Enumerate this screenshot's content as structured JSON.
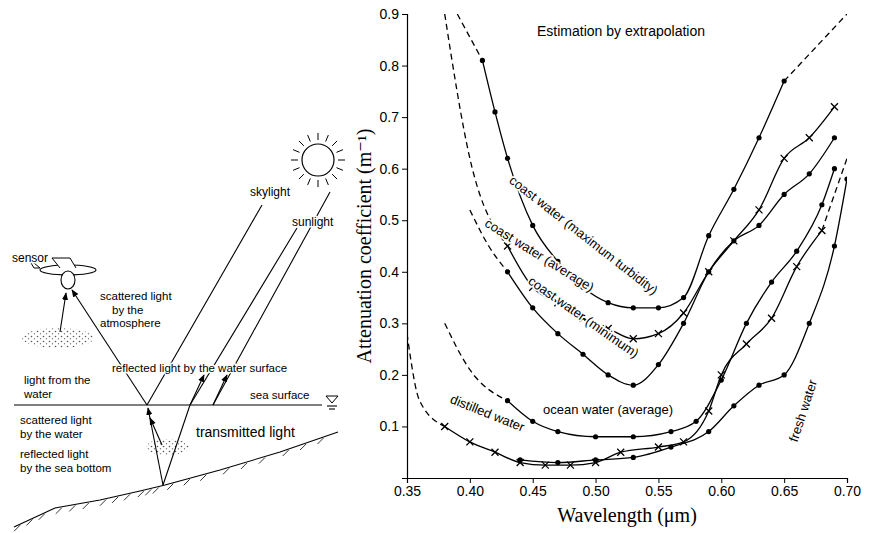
{
  "diagram": {
    "labels": [
      {
        "lines": [
          "sensor"
        ]
      },
      {
        "lines": [
          "skylight"
        ]
      },
      {
        "lines": [
          "sunlight"
        ]
      },
      {
        "lines": [
          "scattered light",
          "by the",
          "atmosphere"
        ]
      },
      {
        "lines": [
          "reflected light by the water surface"
        ]
      },
      {
        "lines": [
          "light from the",
          "water"
        ]
      },
      {
        "lines": [
          "sea surface"
        ]
      },
      {
        "lines": [
          "scattered light",
          "by the water"
        ]
      },
      {
        "lines": [
          "transmitted light"
        ]
      },
      {
        "lines": [
          "reflected light",
          "by the sea bottom"
        ]
      }
    ]
  },
  "chart_data": {
    "type": "line",
    "x_label": "Wavelength (μm)",
    "y_label": "Attenuation coefficient (m⁻¹)",
    "annotations": [
      {
        "text": "Estimation by extrapolation"
      }
    ],
    "xlim": [
      0.35,
      0.7
    ],
    "xticks": [
      0.35,
      {
        "value": 0.4,
        "label": "0.40"
      },
      0.45,
      {
        "value": 0.5,
        "label": "0.50"
      },
      0.55,
      {
        "value": 0.6,
        "label": "0.60"
      },
      0.65,
      {
        "value": 0.7,
        "label": "0.70"
      }
    ],
    "ylim": [
      0,
      0.9
    ],
    "yticks": [
      0.1,
      0.2,
      0.3,
      0.4,
      0.5,
      0.6,
      0.7,
      0.8,
      0.9
    ],
    "series": [
      {
        "name": "coast water (maximum turbidity)",
        "color": "#000000",
        "marker": "dot",
        "line_style": "solid",
        "x": [
          0.41,
          0.42,
          0.43,
          0.45,
          0.47,
          0.49,
          0.51,
          0.53,
          0.55,
          0.57,
          0.59,
          0.61,
          0.63,
          0.65
        ],
        "values": [
          0.81,
          0.71,
          0.62,
          0.49,
          0.42,
          0.37,
          0.34,
          0.33,
          0.33,
          0.35,
          0.47,
          0.56,
          0.66,
          0.77
        ]
      },
      {
        "color": "#000000",
        "marker": "none",
        "line_style": "dashed",
        "x": [
          0.39,
          0.41
        ],
        "values": [
          0.9,
          0.81
        ]
      },
      {
        "color": "#000000",
        "marker": "none",
        "line_style": "dashed",
        "x": [
          0.65,
          0.675,
          0.7
        ],
        "values": [
          0.77,
          0.835,
          0.9
        ]
      },
      {
        "name": "coast water (average)",
        "color": "#000000",
        "marker": "x",
        "line_style": "solid",
        "x": [
          0.43,
          0.45,
          0.47,
          0.49,
          0.51,
          0.53,
          0.55,
          0.57,
          0.59,
          0.61,
          0.63,
          0.65,
          0.67,
          0.69
        ],
        "values": [
          0.45,
          0.37,
          0.34,
          0.31,
          0.29,
          0.27,
          0.28,
          0.32,
          0.4,
          0.46,
          0.52,
          0.62,
          0.66,
          0.72
        ]
      },
      {
        "color": "#000000",
        "marker": "none",
        "line_style": "dashed",
        "x": [
          0.38,
          0.4,
          0.43
        ],
        "values": [
          0.9,
          0.62,
          0.45
        ]
      },
      {
        "name": "coast water (minimum)",
        "color": "#000000",
        "marker": "dot",
        "line_style": "solid",
        "x": [
          0.43,
          0.45,
          0.47,
          0.49,
          0.51,
          0.53,
          0.55,
          0.57,
          0.59,
          0.61,
          0.63,
          0.65,
          0.67,
          0.69
        ],
        "values": [
          0.4,
          0.33,
          0.28,
          0.24,
          0.2,
          0.18,
          0.22,
          0.3,
          0.4,
          0.46,
          0.49,
          0.55,
          0.59,
          0.66
        ]
      },
      {
        "color": "#000000",
        "marker": "none",
        "line_style": "dashed",
        "x": [
          0.4,
          0.415,
          0.43
        ],
        "values": [
          0.52,
          0.45,
          0.4
        ]
      },
      {
        "name": "ocean water (average)",
        "color": "#000000",
        "marker": "dot",
        "line_style": "solid",
        "x": [
          0.43,
          0.45,
          0.47,
          0.5,
          0.53,
          0.56,
          0.58,
          0.6,
          0.62,
          0.64,
          0.66,
          0.68,
          0.69
        ],
        "values": [
          0.15,
          0.11,
          0.09,
          0.08,
          0.08,
          0.09,
          0.11,
          0.19,
          0.3,
          0.38,
          0.44,
          0.53,
          0.6
        ]
      },
      {
        "color": "#000000",
        "marker": "none",
        "line_style": "dashed",
        "x": [
          0.38,
          0.4,
          0.43
        ],
        "values": [
          0.3,
          0.21,
          0.15
        ]
      },
      {
        "name": "distilled water",
        "color": "#000000",
        "marker": "x",
        "line_style": "solid",
        "x": [
          0.38,
          0.4,
          0.42,
          0.44,
          0.46,
          0.48,
          0.5,
          0.52,
          0.55,
          0.57,
          0.59,
          0.6,
          0.62,
          0.64,
          0.66,
          0.68
        ],
        "values": [
          0.1,
          0.07,
          0.05,
          0.03,
          0.025,
          0.025,
          0.03,
          0.05,
          0.06,
          0.07,
          0.13,
          0.2,
          0.26,
          0.31,
          0.41,
          0.48
        ]
      },
      {
        "color": "#000000",
        "marker": "none",
        "line_style": "dashed",
        "x": [
          0.35,
          0.36,
          0.38
        ],
        "values": [
          0.28,
          0.15,
          0.1
        ]
      },
      {
        "color": "#000000",
        "marker": "none",
        "line_style": "dashed",
        "x": [
          0.68,
          0.69,
          0.7
        ],
        "values": [
          0.48,
          0.55,
          0.62
        ]
      },
      {
        "name": "fresh water",
        "color": "#000000",
        "marker": "dot",
        "line_style": "solid",
        "x": [
          0.44,
          0.47,
          0.5,
          0.53,
          0.56,
          0.59,
          0.61,
          0.63,
          0.65,
          0.67,
          0.69,
          0.7
        ],
        "values": [
          0.035,
          0.03,
          0.035,
          0.04,
          0.06,
          0.09,
          0.14,
          0.18,
          0.2,
          0.3,
          0.45,
          0.58
        ]
      }
    ]
  }
}
